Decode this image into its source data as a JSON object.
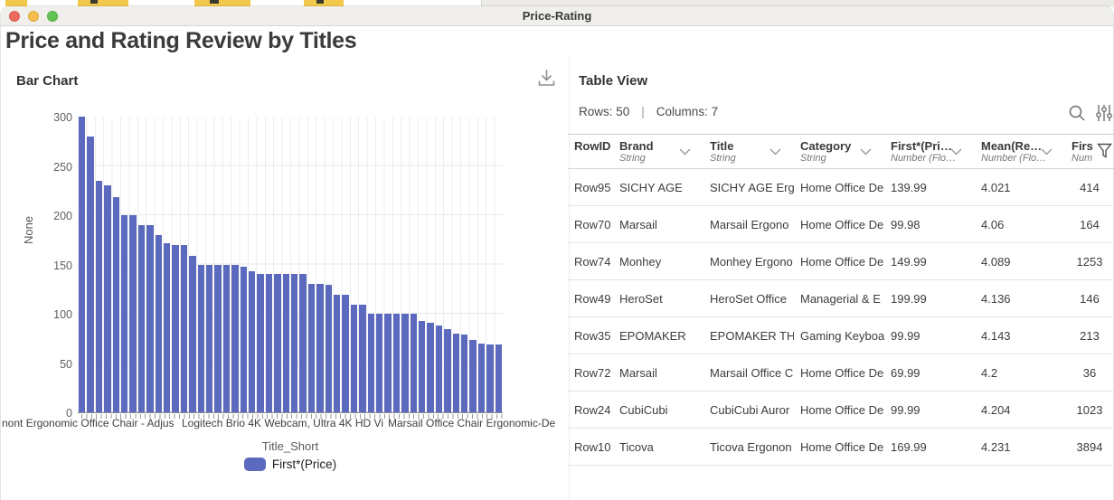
{
  "window": {
    "title": "Price-Rating"
  },
  "page": {
    "heading": "Price and Rating Review by Titles"
  },
  "chart_panel": {
    "title": "Bar Chart",
    "download_icon": "download-icon"
  },
  "chart_data": {
    "type": "bar",
    "title": "Bar Chart",
    "ylabel": "None",
    "xlabel": "Title_Short",
    "ylim": [
      0,
      300
    ],
    "yticks": [
      0,
      50,
      100,
      150,
      200,
      250,
      300
    ],
    "grid": true,
    "legend_position": "bottom",
    "legend": [
      {
        "label": "First*(Price)",
        "color": "#5b6abe"
      }
    ],
    "series_name": "First*(Price)",
    "values": [
      300,
      280,
      235,
      230,
      218,
      200,
      200,
      190,
      190,
      180,
      172,
      170,
      170,
      159,
      150,
      150,
      150,
      150,
      150,
      148,
      143,
      140,
      140,
      140,
      140,
      140,
      140,
      130,
      130,
      129,
      119,
      119,
      109,
      109,
      100,
      100,
      100,
      100,
      100,
      100,
      93,
      91,
      88,
      84,
      80,
      79,
      73,
      70,
      69,
      69
    ],
    "visible_x_tick_labels": [
      "nont Ergonomic Office Chair - Adjus",
      "Logitech Brio 4K Webcam, Ultra 4K HD Vi",
      "Marsail Office Chair Ergonomic-De"
    ]
  },
  "table_panel": {
    "title": "Table View",
    "rows_label": "Rows: 50",
    "separator": "|",
    "columns_label": "Columns: 7",
    "columns": [
      {
        "name": "RowID",
        "type": "",
        "sortable": false
      },
      {
        "name": "Brand",
        "type": "String",
        "sortable": true
      },
      {
        "name": "Title",
        "type": "String",
        "sortable": true
      },
      {
        "name": "Category",
        "type": "String",
        "sortable": true
      },
      {
        "name": "First*(Pri…",
        "type": "Number (Flo…",
        "sortable": true
      },
      {
        "name": "Mean(Re…",
        "type": "Number (Flo…",
        "sortable": true
      },
      {
        "name": "Firs",
        "type": "Num",
        "sortable": false
      }
    ],
    "rows": [
      [
        "Row95",
        "SICHY AGE",
        "SICHY AGE Ergo",
        "Home Office De",
        "139.99",
        "4.021",
        "414"
      ],
      [
        "Row70",
        "Marsail",
        "Marsail Ergono",
        "Home Office De",
        "99.98",
        "4.06",
        "164"
      ],
      [
        "Row74",
        "Monhey",
        "Monhey Ergono",
        "Home Office De",
        "149.99",
        "4.089",
        "1253"
      ],
      [
        "Row49",
        "HeroSet",
        "HeroSet Office",
        "Managerial & E",
        "199.99",
        "4.136",
        "146"
      ],
      [
        "Row35",
        "EPOMAKER",
        "EPOMAKER TH",
        "Gaming Keyboa",
        "99.99",
        "4.143",
        "213"
      ],
      [
        "Row72",
        "Marsail",
        "Marsail Office C",
        "Home Office De",
        "69.99",
        "4.2",
        "36"
      ],
      [
        "Row24",
        "CubiCubi",
        "CubiCubi Auror",
        "Home Office De",
        "99.99",
        "4.204",
        "1023"
      ],
      [
        "Row10",
        "Ticova",
        "Ticova Ergonon",
        "Home Office De",
        "169.99",
        "4.231",
        "3894"
      ]
    ]
  },
  "colors": {
    "bar": "#5b6abe",
    "titlebar_bg": "#f0efec",
    "traffic_red": "#ee6a5f",
    "traffic_yellow": "#f5bd4f",
    "traffic_green": "#61c454",
    "grid": "#ededed",
    "row_separator": "#e4e4e4"
  }
}
